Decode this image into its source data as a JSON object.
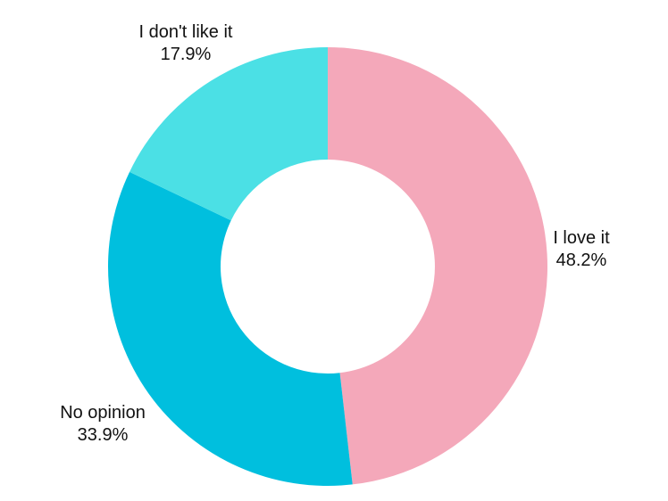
{
  "background": "#ffffff",
  "text_color": "#111111",
  "chart_data": {
    "type": "pie",
    "subtype": "donut",
    "title": "",
    "legend": "none",
    "label_position": "outside",
    "start_angle_deg": 0,
    "direction": "clockwise",
    "total": 100.0,
    "segments": [
      {
        "id": "i-love-it",
        "label": "I love it",
        "value": 48.2,
        "pct_label": "48.2%",
        "color": "#F4A8BA"
      },
      {
        "id": "no-opinion",
        "label": "No opinion",
        "value": 33.9,
        "pct_label": "33.9%",
        "color": "#00BFDE"
      },
      {
        "id": "i-dont-like-it",
        "label": "I don't like it",
        "value": 17.9,
        "pct_label": "17.9%",
        "color": "#4BE0E5"
      }
    ]
  }
}
